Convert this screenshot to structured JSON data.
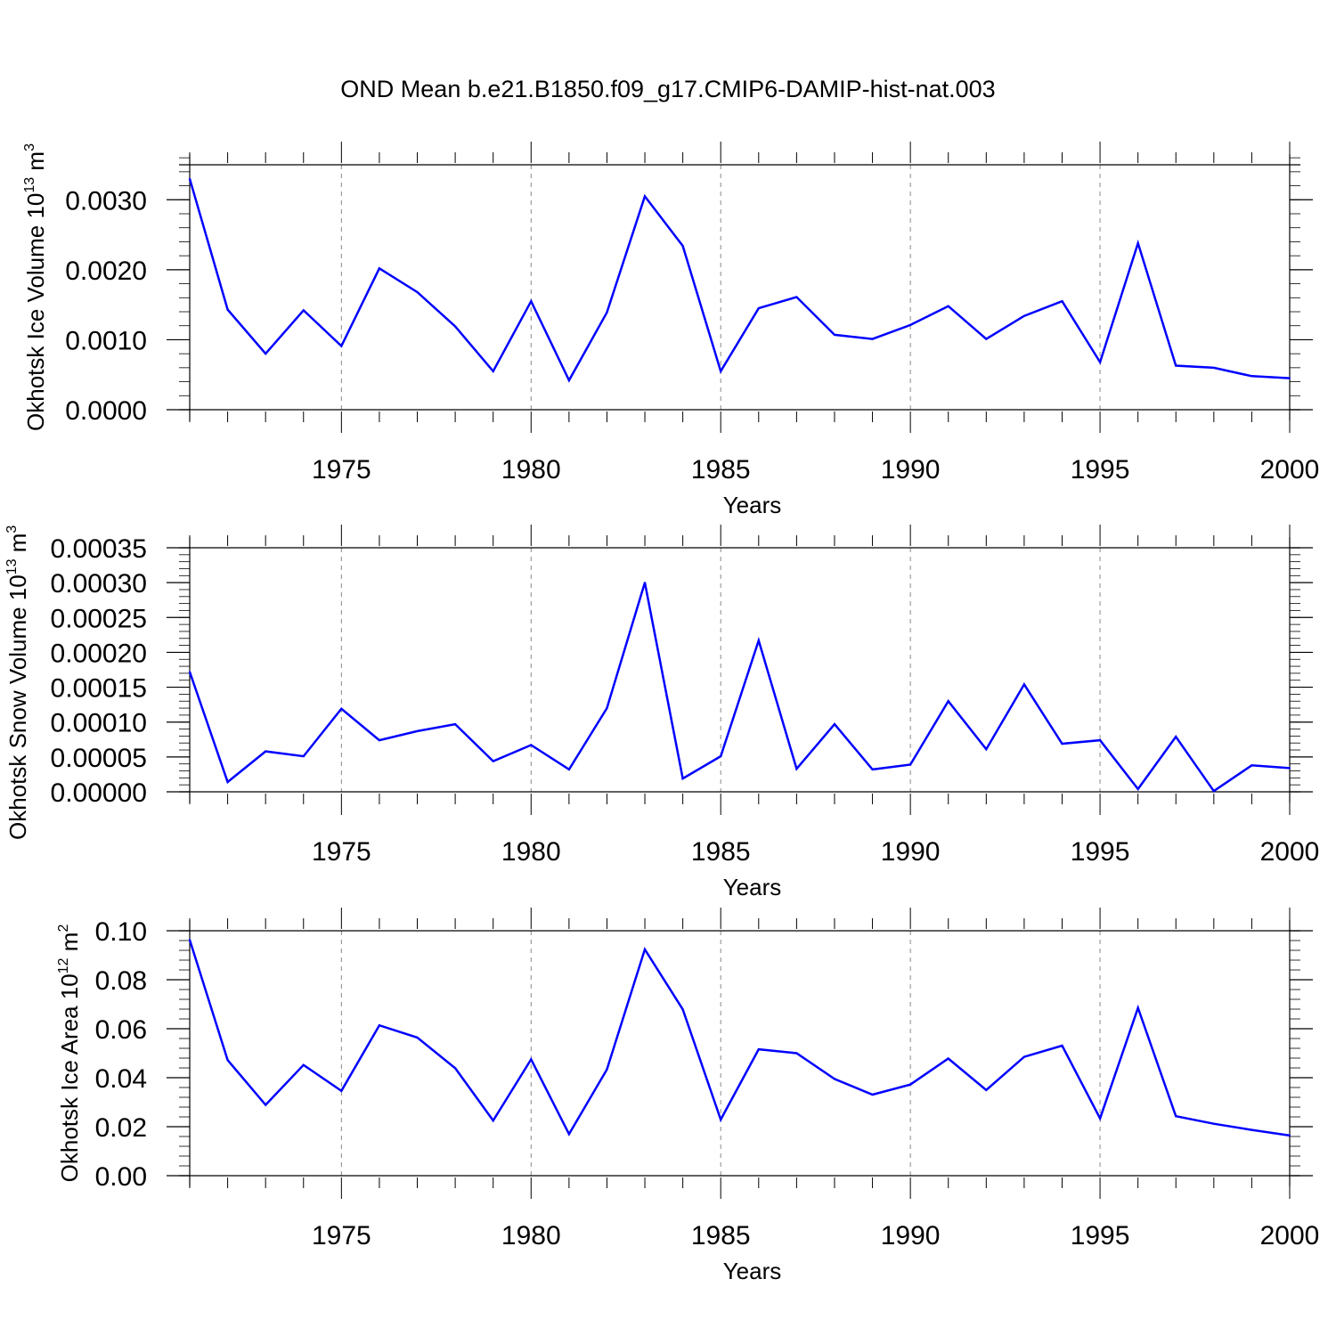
{
  "title": "OND Mean b.e21.B1850.f09_g17.CMIP6-DAMIP-hist-nat.003",
  "colors": {
    "series": "#0000ff",
    "axis": "#000000",
    "grid": "#888888"
  },
  "chart_data": [
    {
      "type": "line",
      "ylabel": {
        "main": "Okhotsk Ice Volume 10",
        "exp": "13",
        "unit": " m",
        "unit_exp": "3"
      },
      "xlabel": "Years",
      "xlim": [
        1971,
        2000
      ],
      "ylim": [
        0,
        0.0035
      ],
      "x_tick_values": [
        1975,
        1980,
        1985,
        1990,
        1995,
        2000
      ],
      "x_tick_labels": [
        "1975",
        "1980",
        "1985",
        "1990",
        "1995",
        "2000"
      ],
      "y_tick_values": [
        0,
        0.001,
        0.002,
        0.003
      ],
      "y_tick_labels": [
        "0.0000",
        "0.0010",
        "0.0020",
        "0.0030"
      ],
      "y_minor_step": 0.0002,
      "grid": "vertical dashed at major x ticks",
      "x": [
        1971,
        1972,
        1973,
        1974,
        1975,
        1976,
        1977,
        1978,
        1979,
        1980,
        1981,
        1982,
        1983,
        1984,
        1985,
        1986,
        1987,
        1988,
        1989,
        1990,
        1991,
        1992,
        1993,
        1994,
        1995,
        1996,
        1997,
        1998,
        1999,
        2000
      ],
      "values": [
        0.0033,
        0.00143,
        0.0008,
        0.00142,
        0.00091,
        0.00202,
        0.00168,
        0.00119,
        0.00055,
        0.00155,
        0.00042,
        0.00139,
        0.00305,
        0.00234,
        0.00055,
        0.00145,
        0.00161,
        0.00107,
        0.00101,
        0.00121,
        0.00148,
        0.00101,
        0.00134,
        0.00155,
        0.00068,
        0.00238,
        0.00063,
        0.0006,
        0.00048,
        0.00045
      ]
    },
    {
      "type": "line",
      "ylabel": {
        "main": "Okhotsk Snow Volume 10",
        "exp": "13",
        "unit": " m",
        "unit_exp": "3"
      },
      "xlabel": "Years",
      "xlim": [
        1971,
        2000
      ],
      "ylim": [
        0,
        0.00035
      ],
      "x_tick_values": [
        1975,
        1980,
        1985,
        1990,
        1995,
        2000
      ],
      "x_tick_labels": [
        "1975",
        "1980",
        "1985",
        "1990",
        "1995",
        "2000"
      ],
      "y_tick_values": [
        0,
        5e-05,
        0.0001,
        0.00015,
        0.0002,
        0.00025,
        0.0003,
        0.00035
      ],
      "y_tick_labels": [
        "0.00000",
        "0.00005",
        "0.00010",
        "0.00015",
        "0.00020",
        "0.00025",
        "0.00030",
        "0.00035"
      ],
      "y_minor_step": 1e-05,
      "grid": "vertical dashed at major x ticks",
      "x": [
        1971,
        1972,
        1973,
        1974,
        1975,
        1976,
        1977,
        1978,
        1979,
        1980,
        1981,
        1982,
        1983,
        1984,
        1985,
        1986,
        1987,
        1988,
        1989,
        1990,
        1991,
        1992,
        1993,
        1994,
        1995,
        1996,
        1997,
        1998,
        1999,
        2000
      ],
      "values": [
        0.000172,
        1.4e-05,
        5.8e-05,
        5.1e-05,
        0.000119,
        7.4e-05,
        8.7e-05,
        9.7e-05,
        4.4e-05,
        6.7e-05,
        3.2e-05,
        0.00012,
        0.0003,
        1.9e-05,
        5.1e-05,
        0.000217,
        3.3e-05,
        9.7e-05,
        3.2e-05,
        3.9e-05,
        0.00013,
        6.1e-05,
        0.000154,
        6.9e-05,
        7.4e-05,
        4e-06,
        7.9e-05,
        1e-06,
        3.8e-05,
        3.4e-05
      ]
    },
    {
      "type": "line",
      "ylabel": {
        "main": "Okhotsk Ice Area 10",
        "exp": "12",
        "unit": " m",
        "unit_exp": "2"
      },
      "xlabel": "Years",
      "xlim": [
        1971,
        2000
      ],
      "ylim": [
        0,
        0.1
      ],
      "x_tick_values": [
        1975,
        1980,
        1985,
        1990,
        1995,
        2000
      ],
      "x_tick_labels": [
        "1975",
        "1980",
        "1985",
        "1990",
        "1995",
        "2000"
      ],
      "y_tick_values": [
        0,
        0.02,
        0.04,
        0.06,
        0.08,
        0.1
      ],
      "y_tick_labels": [
        "0.00",
        "0.02",
        "0.04",
        "0.06",
        "0.08",
        "0.10"
      ],
      "y_minor_step": 0.004,
      "grid": "vertical dashed at major x ticks",
      "x": [
        1971,
        1972,
        1973,
        1974,
        1975,
        1976,
        1977,
        1978,
        1979,
        1980,
        1981,
        1982,
        1983,
        1984,
        1985,
        1986,
        1987,
        1988,
        1989,
        1990,
        1991,
        1992,
        1993,
        1994,
        1995,
        1996,
        1997,
        1998,
        1999,
        2000
      ],
      "values": [
        0.0963,
        0.0472,
        0.0289,
        0.0452,
        0.0346,
        0.0614,
        0.0564,
        0.0439,
        0.0225,
        0.0475,
        0.017,
        0.0434,
        0.0924,
        0.0679,
        0.0229,
        0.0516,
        0.05,
        0.0395,
        0.0331,
        0.0372,
        0.0478,
        0.035,
        0.0485,
        0.0531,
        0.0234,
        0.0685,
        0.0243,
        0.0212,
        0.0187,
        0.0164
      ]
    }
  ]
}
